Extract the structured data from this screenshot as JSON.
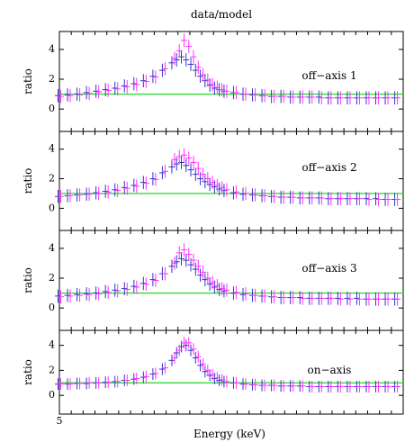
{
  "chart_data": {
    "type": "scatter",
    "title": "data/model",
    "xlabel": "Energy (keV)",
    "x_tick_labels": [
      "5"
    ],
    "colors": {
      "series_a": "#3333cc",
      "series_b": "#ff33ff",
      "reference": "#33dd33"
    },
    "panels": [
      {
        "label": "off−axis 1",
        "ylabel": "ratio",
        "y_ticks": [
          "0",
          "2",
          "4"
        ],
        "ylim": [
          -1.5,
          5.2
        ],
        "reference_line": 1,
        "x": [
          5.0,
          5.08,
          5.16,
          5.24,
          5.32,
          5.4,
          5.48,
          5.56,
          5.64,
          5.72,
          5.8,
          5.88,
          5.96,
          6.0,
          6.04,
          6.08,
          6.12,
          6.16,
          6.2,
          6.24,
          6.28,
          6.32,
          6.36,
          6.4,
          6.48,
          6.56,
          6.64,
          6.72,
          6.8,
          6.88,
          6.96,
          7.04,
          7.12,
          7.2,
          7.28,
          7.36,
          7.44,
          7.52,
          7.6,
          7.68,
          7.76,
          7.84
        ],
        "series": [
          {
            "values": [
              0.9,
              0.95,
              1.0,
              1.1,
              1.2,
              1.3,
              1.4,
              1.55,
              1.7,
              1.9,
              2.2,
              2.6,
              3.1,
              3.3,
              3.5,
              3.3,
              3.0,
              2.6,
              2.2,
              1.9,
              1.6,
              1.4,
              1.3,
              1.2,
              1.1,
              1.0,
              0.95,
              0.9,
              0.85,
              0.85,
              0.8,
              0.8,
              0.8,
              0.8,
              0.75,
              0.75,
              0.75,
              0.75,
              0.75,
              0.75,
              0.75,
              0.75
            ]
          },
          {
            "values": [
              0.85,
              0.9,
              0.95,
              1.05,
              1.15,
              1.25,
              1.35,
              1.5,
              1.65,
              1.85,
              2.15,
              2.7,
              3.4,
              3.9,
              4.6,
              4.2,
              3.5,
              2.8,
              2.3,
              1.95,
              1.65,
              1.45,
              1.3,
              1.2,
              1.1,
              1.0,
              0.95,
              0.9,
              0.85,
              0.85,
              0.8,
              0.8,
              0.8,
              0.75,
              0.75,
              0.75,
              0.75,
              0.75,
              0.75,
              0.75,
              0.75,
              0.75
            ]
          }
        ]
      },
      {
        "label": "off−axis 2",
        "ylabel": "ratio",
        "y_ticks": [
          "0",
          "2",
          "4"
        ],
        "ylim": [
          -1.5,
          5.2
        ],
        "reference_line": 1,
        "x": [
          5.0,
          5.08,
          5.16,
          5.24,
          5.32,
          5.4,
          5.48,
          5.56,
          5.64,
          5.72,
          5.8,
          5.88,
          5.96,
          6.0,
          6.04,
          6.08,
          6.12,
          6.16,
          6.2,
          6.24,
          6.28,
          6.32,
          6.36,
          6.4,
          6.48,
          6.56,
          6.64,
          6.72,
          6.8,
          6.88,
          6.96,
          7.04,
          7.12,
          7.2,
          7.28,
          7.36,
          7.44,
          7.52,
          7.6,
          7.68,
          7.76,
          7.84
        ],
        "series": [
          {
            "values": [
              0.8,
              0.85,
              0.9,
              0.95,
              1.05,
              1.15,
              1.25,
              1.4,
              1.55,
              1.75,
              2.0,
              2.4,
              2.8,
              3.0,
              3.1,
              2.9,
              2.6,
              2.3,
              2.0,
              1.8,
              1.6,
              1.45,
              1.3,
              1.2,
              1.05,
              0.95,
              0.9,
              0.85,
              0.8,
              0.75,
              0.75,
              0.7,
              0.7,
              0.7,
              0.65,
              0.65,
              0.65,
              0.65,
              0.65,
              0.65,
              0.6,
              0.6
            ]
          },
          {
            "values": [
              0.8,
              0.85,
              0.9,
              0.95,
              1.0,
              1.1,
              1.2,
              1.35,
              1.5,
              1.7,
              1.95,
              2.5,
              3.3,
              3.5,
              3.6,
              3.4,
              3.1,
              2.7,
              2.3,
              2.0,
              1.75,
              1.55,
              1.4,
              1.25,
              1.1,
              1.0,
              0.9,
              0.85,
              0.8,
              0.75,
              0.75,
              0.7,
              0.7,
              0.7,
              0.65,
              0.65,
              0.65,
              0.65,
              0.6,
              0.6,
              0.6,
              0.6
            ]
          }
        ]
      },
      {
        "label": "off−axis 3",
        "ylabel": "ratio",
        "y_ticks": [
          "0",
          "2",
          "4"
        ],
        "ylim": [
          -1.5,
          5.2
        ],
        "reference_line": 1,
        "x": [
          5.0,
          5.08,
          5.16,
          5.24,
          5.32,
          5.4,
          5.48,
          5.56,
          5.64,
          5.72,
          5.8,
          5.88,
          5.96,
          6.0,
          6.04,
          6.08,
          6.12,
          6.16,
          6.2,
          6.24,
          6.28,
          6.32,
          6.36,
          6.4,
          6.48,
          6.56,
          6.64,
          6.72,
          6.8,
          6.88,
          6.96,
          7.04,
          7.12,
          7.2,
          7.28,
          7.36,
          7.44,
          7.52,
          7.6,
          7.68,
          7.76,
          7.84
        ],
        "series": [
          {
            "values": [
              0.8,
              0.85,
              0.9,
              0.95,
              1.0,
              1.1,
              1.2,
              1.3,
              1.45,
              1.65,
              1.9,
              2.3,
              2.8,
              3.1,
              3.3,
              3.2,
              2.9,
              2.6,
              2.2,
              1.9,
              1.6,
              1.4,
              1.25,
              1.15,
              1.0,
              0.9,
              0.85,
              0.8,
              0.75,
              0.7,
              0.7,
              0.7,
              0.65,
              0.65,
              0.65,
              0.65,
              0.65,
              0.65,
              0.6,
              0.6,
              0.6,
              0.6
            ]
          },
          {
            "values": [
              0.75,
              0.8,
              0.85,
              0.9,
              0.95,
              1.05,
              1.15,
              1.25,
              1.4,
              1.6,
              1.85,
              2.3,
              3.0,
              3.7,
              3.9,
              3.6,
              3.2,
              2.8,
              2.4,
              2.0,
              1.7,
              1.5,
              1.3,
              1.2,
              1.05,
              0.95,
              0.85,
              0.8,
              0.75,
              0.7,
              0.7,
              0.65,
              0.65,
              0.65,
              0.65,
              0.6,
              0.6,
              0.6,
              0.6,
              0.6,
              0.6,
              0.6
            ]
          }
        ]
      },
      {
        "label": "on−axis",
        "ylabel": "ratio",
        "y_ticks": [
          "0",
          "2",
          "4"
        ],
        "ylim": [
          -1.5,
          5.2
        ],
        "reference_line": 1,
        "x": [
          5.0,
          5.08,
          5.16,
          5.24,
          5.32,
          5.4,
          5.48,
          5.56,
          5.64,
          5.72,
          5.8,
          5.88,
          5.96,
          6.0,
          6.04,
          6.08,
          6.12,
          6.16,
          6.2,
          6.24,
          6.28,
          6.32,
          6.36,
          6.4,
          6.48,
          6.56,
          6.64,
          6.72,
          6.8,
          6.88,
          6.96,
          7.04,
          7.12,
          7.2,
          7.28,
          7.36,
          7.44,
          7.52,
          7.6,
          7.68,
          7.76,
          7.84
        ],
        "series": [
          {
            "values": [
              0.9,
              0.9,
              0.95,
              0.95,
              1.0,
              1.05,
              1.1,
              1.2,
              1.3,
              1.45,
              1.7,
              2.1,
              2.8,
              3.4,
              3.9,
              4.0,
              3.6,
              3.0,
              2.4,
              1.9,
              1.6,
              1.35,
              1.2,
              1.1,
              1.0,
              0.9,
              0.85,
              0.8,
              0.8,
              0.75,
              0.75,
              0.75,
              0.7,
              0.7,
              0.7,
              0.7,
              0.7,
              0.7,
              0.7,
              0.7,
              0.7,
              0.7
            ]
          },
          {
            "values": [
              0.9,
              0.9,
              0.95,
              1.0,
              1.0,
              1.05,
              1.1,
              1.2,
              1.35,
              1.5,
              1.75,
              2.2,
              3.0,
              3.6,
              4.2,
              4.2,
              3.7,
              3.1,
              2.5,
              2.0,
              1.65,
              1.4,
              1.25,
              1.1,
              1.0,
              0.9,
              0.85,
              0.8,
              0.8,
              0.75,
              0.75,
              0.75,
              0.7,
              0.7,
              0.7,
              0.7,
              0.7,
              0.7,
              0.7,
              0.7,
              0.7,
              0.7
            ]
          }
        ]
      }
    ]
  }
}
